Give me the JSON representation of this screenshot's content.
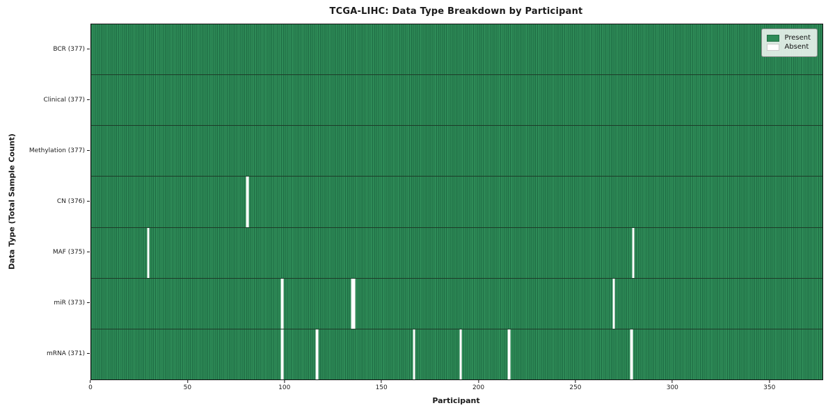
{
  "title": "TCGA-LIHC: Data Type Breakdown by Participant",
  "chart_data": {
    "type": "heatmap",
    "title": "TCGA-LIHC: Data Type Breakdown by Participant",
    "xlabel": "Participant",
    "ylabel": "Data Type (Total Sample Count)",
    "x_range": [
      0,
      377
    ],
    "x_ticks": [
      0,
      50,
      100,
      150,
      200,
      250,
      300,
      350
    ],
    "n_participants": 377,
    "grid": false,
    "legend_position": "upper right",
    "colors": {
      "present": "#2e8b57",
      "absent": "#ffffff"
    },
    "rows": [
      {
        "label": "BCR (377)",
        "data_type": "BCR",
        "total": 377,
        "absent_participants": []
      },
      {
        "label": "Clinical (377)",
        "data_type": "Clinical",
        "total": 377,
        "absent_participants": []
      },
      {
        "label": "Methylation (377)",
        "data_type": "Methylation",
        "total": 377,
        "absent_participants": []
      },
      {
        "label": "CN (376)",
        "data_type": "CN",
        "total": 376,
        "absent_participants": [
          80
        ]
      },
      {
        "label": "MAF (375)",
        "data_type": "MAF",
        "total": 375,
        "absent_participants": [
          29,
          279
        ]
      },
      {
        "label": "miR (373)",
        "data_type": "miR",
        "total": 373,
        "absent_participants": [
          98,
          134,
          135,
          269
        ]
      },
      {
        "label": "mRNA (371)",
        "data_type": "mRNA",
        "total": 371,
        "absent_participants": [
          98,
          116,
          166,
          190,
          215,
          278
        ]
      }
    ],
    "legend": [
      {
        "label": "Present",
        "color": "#2e8b57"
      },
      {
        "label": "Absent",
        "color": "#ffffff"
      }
    ]
  }
}
